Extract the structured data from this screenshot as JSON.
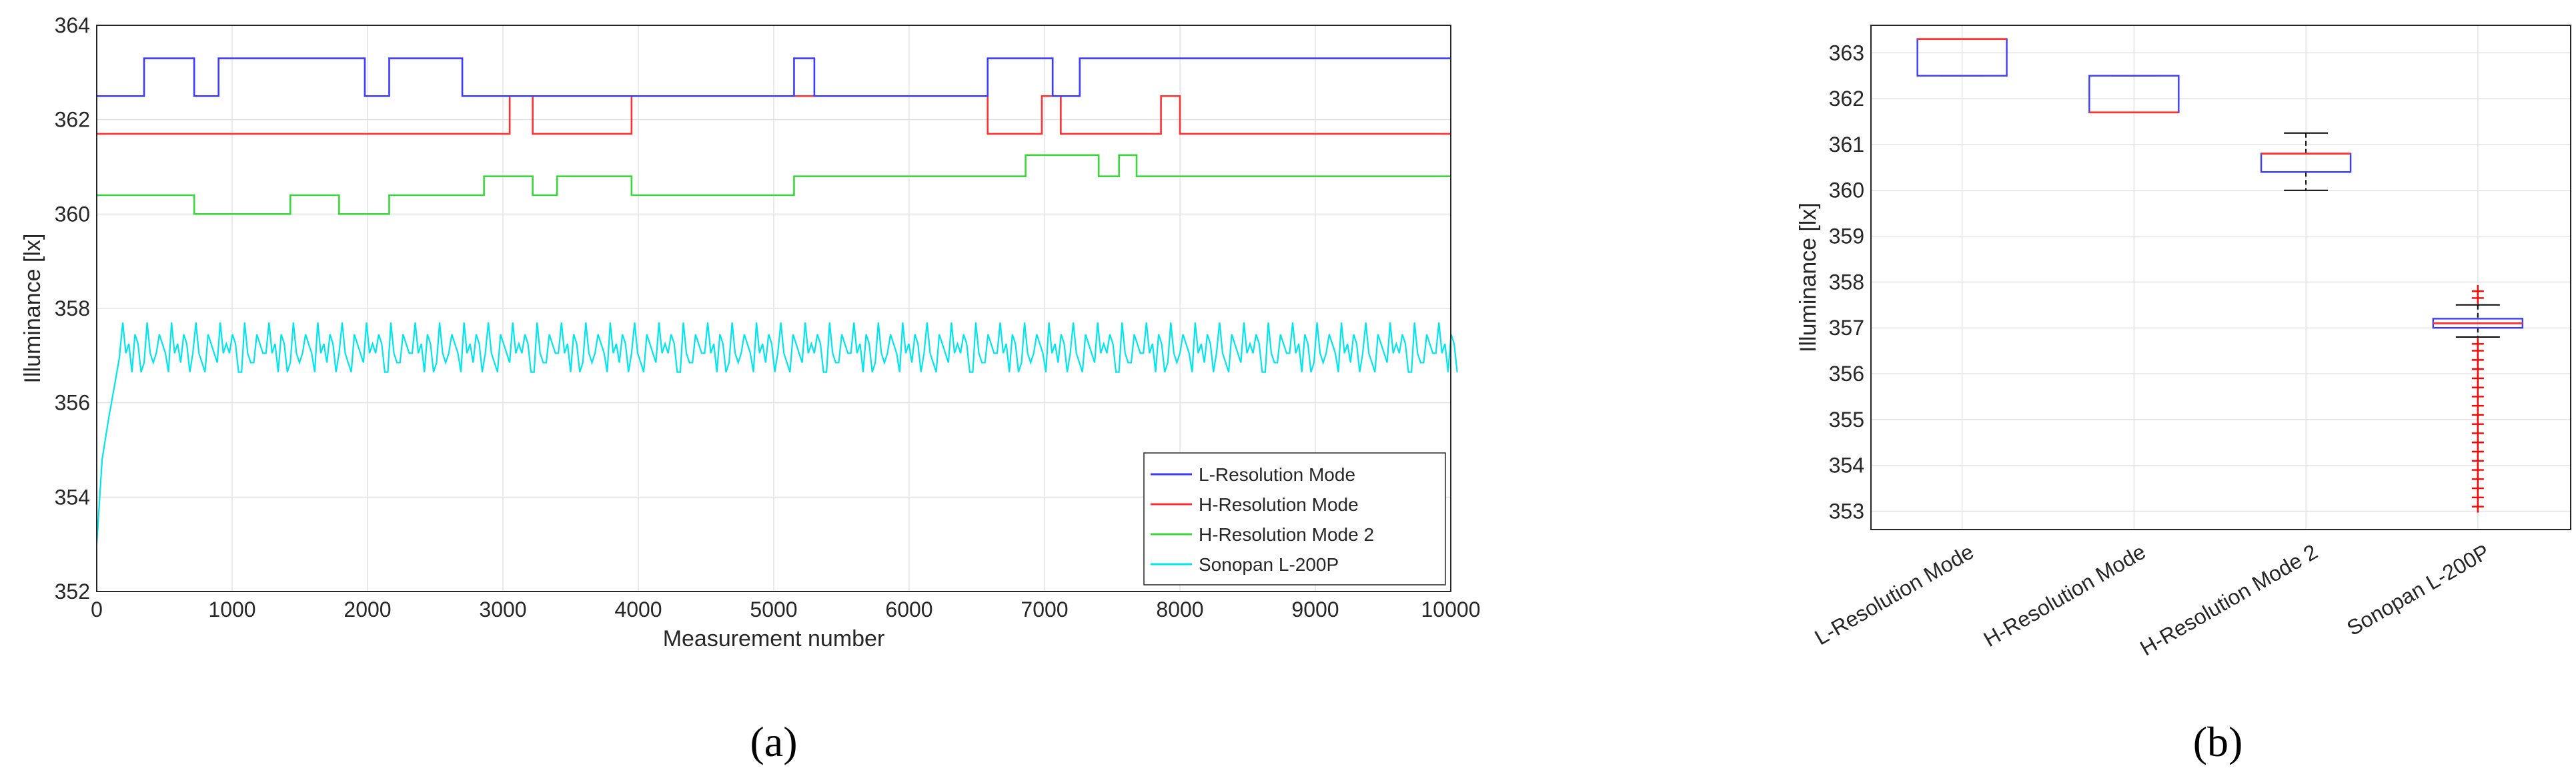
{
  "panels": {
    "a": "(a)",
    "b": "(b)"
  },
  "chart_data": [
    {
      "type": "line",
      "xlabel": "Measurement number",
      "ylabel": "Illuminance [lx]",
      "xlim": [
        0,
        10000
      ],
      "ylim": [
        352,
        364
      ],
      "xticks": [
        0,
        1000,
        2000,
        3000,
        4000,
        5000,
        6000,
        7000,
        8000,
        9000,
        10000
      ],
      "yticks": [
        352,
        354,
        356,
        358,
        360,
        362,
        364
      ],
      "grid": true,
      "legend_position": "bottom-right",
      "series": [
        {
          "name": "L-Resolution Mode",
          "color": "#3b3bff",
          "x": [
            0,
            350,
            350,
            720,
            720,
            900,
            900,
            1980,
            1980,
            2160,
            2160,
            2700,
            2700,
            5150,
            5150,
            5300,
            5300,
            6580,
            6580,
            7060,
            7060,
            7260,
            7260,
            10000
          ],
          "y": [
            362.5,
            362.5,
            363.3,
            363.3,
            362.5,
            362.5,
            363.3,
            363.3,
            362.5,
            362.5,
            363.3,
            363.3,
            362.5,
            362.5,
            363.3,
            363.3,
            362.5,
            362.5,
            363.3,
            363.3,
            362.5,
            362.5,
            363.3,
            363.3
          ]
        },
        {
          "name": "H-Resolution Mode",
          "color": "#ff3030",
          "x": [
            0,
            3050,
            3050,
            3220,
            3220,
            3950,
            3950,
            6580,
            6580,
            6980,
            6980,
            7120,
            7120,
            7860,
            7860,
            8000,
            8000,
            10000
          ],
          "y": [
            361.7,
            361.7,
            362.5,
            362.5,
            361.7,
            361.7,
            362.5,
            362.5,
            361.7,
            361.7,
            362.5,
            362.5,
            361.7,
            361.7,
            362.5,
            362.5,
            361.7,
            361.7
          ]
        },
        {
          "name": "H-Resolution Mode 2",
          "color": "#3ad83a",
          "x": [
            0,
            720,
            720,
            1430,
            1430,
            1790,
            1790,
            2160,
            2160,
            2860,
            2860,
            3220,
            3220,
            3400,
            3400,
            3950,
            3950,
            5150,
            5150,
            6860,
            6860,
            7400,
            7400,
            7550,
            7550,
            7680,
            7680,
            10000
          ],
          "y": [
            360.4,
            360.4,
            360.0,
            360.0,
            360.4,
            360.4,
            360.0,
            360.0,
            360.4,
            360.4,
            360.8,
            360.8,
            360.4,
            360.4,
            360.8,
            360.8,
            360.4,
            360.4,
            360.8,
            360.8,
            361.25,
            361.25,
            360.8,
            360.8,
            361.25,
            361.25,
            360.8,
            360.8
          ]
        },
        {
          "name": "Sonopan L-200P",
          "color": "#00e5ee",
          "x_start": 0,
          "x_end": 10000,
          "ramp_x": [
            0,
            40,
            90,
            140,
            170
          ],
          "ramp_y": [
            353.0,
            354.8,
            355.7,
            356.5,
            357.0
          ],
          "oscillation_levels": [
            356.65,
            356.85,
            357.05,
            357.25,
            357.45,
            357.7
          ],
          "oscillation_period": 90
        }
      ]
    },
    {
      "type": "box",
      "ylabel": "Illuminance [lx]",
      "ylim": [
        352.6,
        363.6
      ],
      "yticks": [
        353,
        354,
        355,
        356,
        357,
        358,
        359,
        360,
        361,
        362,
        363
      ],
      "grid": true,
      "categories": [
        "L-Resolution Mode",
        "H-Resolution Mode",
        "H-Resolution Mode 2",
        "Sonopan L-200P"
      ],
      "boxes": [
        {
          "whisker_low": 362.5,
          "q1": 362.5,
          "median": 363.3,
          "q3": 363.3,
          "whisker_high": 363.3,
          "outliers": []
        },
        {
          "whisker_low": 361.7,
          "q1": 361.7,
          "median": 361.7,
          "q3": 362.5,
          "whisker_high": 362.5,
          "outliers": []
        },
        {
          "whisker_low": 360.0,
          "q1": 360.4,
          "median": 360.8,
          "q3": 360.8,
          "whisker_high": 361.25,
          "outliers": []
        },
        {
          "whisker_low": 356.8,
          "q1": 357.0,
          "median": 357.1,
          "q3": 357.2,
          "whisker_high": 357.5,
          "outliers": [
            353.1,
            353.3,
            353.5,
            353.7,
            353.9,
            354.1,
            354.3,
            354.5,
            354.7,
            354.9,
            355.1,
            355.3,
            355.5,
            355.7,
            355.9,
            356.1,
            356.3,
            356.5,
            356.65,
            357.65,
            357.8
          ]
        }
      ],
      "box_color": "#3b3bff",
      "median_color": "#ff3030",
      "outlier_color": "#ff0000"
    }
  ]
}
